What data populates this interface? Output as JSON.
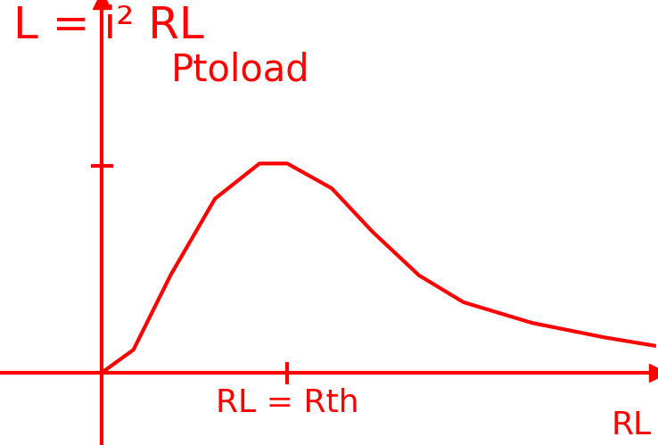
{
  "chart_data": {
    "type": "line",
    "title": "L = i² RL",
    "y_label": "Ptoload",
    "x_label": "RL",
    "x": [
      0,
      0.17,
      0.37,
      0.61,
      0.85,
      1.0,
      1.24,
      1.46,
      1.71,
      1.95,
      2.32,
      2.71,
      2.98
    ],
    "values": [
      0,
      0.11,
      0.47,
      0.84,
      1.01,
      1.01,
      0.89,
      0.68,
      0.47,
      0.34,
      0.24,
      0.17,
      0.13
    ],
    "color": "#ff0000",
    "xlim": [
      -0.55,
      3.0
    ],
    "ylim": [
      -0.35,
      1.8
    ],
    "xticks": [
      {
        "value": 1,
        "label": "RL = Rth"
      }
    ],
    "yticks": [
      1
    ],
    "tick_labels": "x",
    "grid": false
  }
}
